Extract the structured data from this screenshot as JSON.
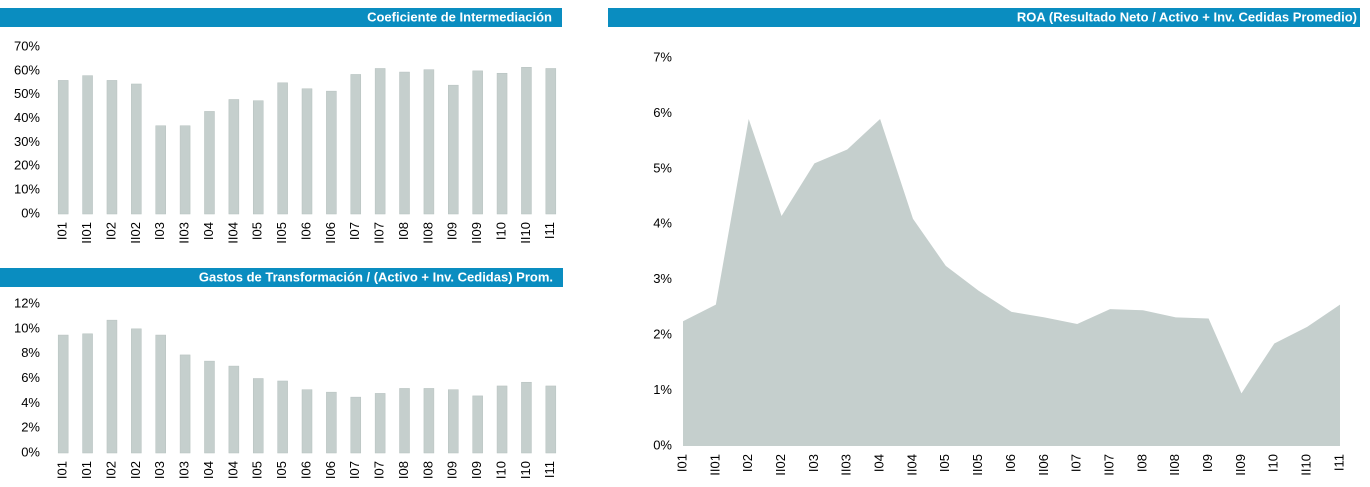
{
  "chart_data": [
    {
      "type": "bar",
      "title": "Coeficiente de Intermediación",
      "color": "#c5cfcd",
      "categories": [
        "I01",
        "II01",
        "I02",
        "II02",
        "I03",
        "II03",
        "I04",
        "II04",
        "I05",
        "II05",
        "I06",
        "II06",
        "I07",
        "II07",
        "I08",
        "II08",
        "I09",
        "II09",
        "I10",
        "II10",
        "I11"
      ],
      "values": [
        56,
        58,
        56,
        54.5,
        37,
        37,
        43,
        48,
        47.5,
        55,
        52.5,
        51.5,
        58.5,
        61,
        59.5,
        60.5,
        54,
        60,
        59,
        61.5,
        61
      ],
      "ylim": [
        0,
        70
      ],
      "yticks": [
        {
          "value": 0,
          "label": "0%"
        },
        {
          "value": 10,
          "label": "10%"
        },
        {
          "value": 20,
          "label": "20%"
        },
        {
          "value": 30,
          "label": "30%"
        },
        {
          "value": 40,
          "label": "40%"
        },
        {
          "value": 50,
          "label": "50%"
        },
        {
          "value": 60,
          "label": "60%"
        },
        {
          "value": 70,
          "label": "70%"
        }
      ]
    },
    {
      "type": "bar",
      "title": "Gastos de Transformación / (Activo + Inv. Cedidas) Prom.",
      "color": "#c5cfcd",
      "categories": [
        "I01",
        "I01",
        "I02",
        "I02",
        "I03",
        "I03",
        "I04",
        "I04",
        "I05",
        "I05",
        "I06",
        "I06",
        "I07",
        "I07",
        "I08",
        "I08",
        "I09",
        "I09",
        "I10",
        "I10",
        "I11"
      ],
      "values": [
        9.5,
        9.6,
        10.7,
        10,
        9.5,
        7.9,
        7.4,
        7,
        6,
        5.8,
        5.1,
        4.9,
        4.5,
        4.8,
        5.2,
        5.2,
        5.1,
        4.6,
        5.4,
        5.7,
        5.4
      ],
      "ylim": [
        0,
        12
      ],
      "yticks": [
        {
          "value": 0,
          "label": "0%"
        },
        {
          "value": 2,
          "label": "2%"
        },
        {
          "value": 4,
          "label": "4%"
        },
        {
          "value": 6,
          "label": "6%"
        },
        {
          "value": 8,
          "label": "8%"
        },
        {
          "value": 10,
          "label": "10%"
        },
        {
          "value": 12,
          "label": "12%"
        }
      ]
    },
    {
      "type": "area",
      "title": "ROA (Resultado Neto / Activo + Inv. Cedidas Promedio)",
      "color": "#c5cfcd",
      "categories": [
        "I01",
        "II01",
        "I02",
        "II02",
        "I03",
        "II03",
        "I04",
        "II04",
        "I05",
        "II05",
        "I06",
        "II06",
        "I07",
        "II07",
        "I08",
        "II08",
        "I09",
        "II09",
        "I10",
        "II10",
        "I11"
      ],
      "values": [
        2.25,
        2.55,
        5.9,
        4.15,
        5.1,
        5.35,
        5.9,
        4.1,
        3.25,
        2.8,
        2.42,
        2.32,
        2.2,
        2.47,
        2.45,
        2.32,
        2.3,
        0.95,
        1.85,
        2.15,
        2.55
      ],
      "ylim": [
        0,
        7
      ],
      "yticks": [
        {
          "value": 0,
          "label": "0%"
        },
        {
          "value": 1,
          "label": "1%"
        },
        {
          "value": 2,
          "label": "2%"
        },
        {
          "value": 3,
          "label": "3%"
        },
        {
          "value": 4,
          "label": "4%"
        },
        {
          "value": 5,
          "label": "5%"
        },
        {
          "value": 6,
          "label": "6%"
        },
        {
          "value": 7,
          "label": "7%"
        }
      ]
    }
  ]
}
